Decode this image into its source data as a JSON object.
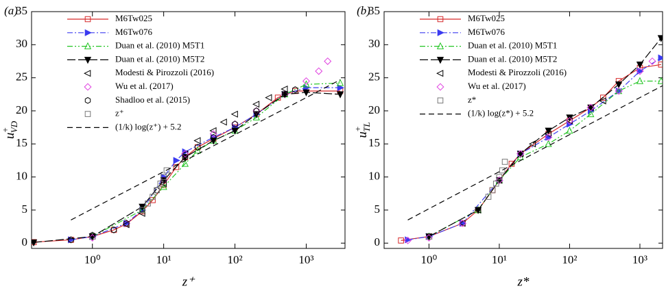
{
  "chart_data": [
    {
      "type": "line",
      "panel": "(a)",
      "xlabel": "z⁺",
      "ylabel": {
        "base": "u",
        "sup": "+",
        "sub": "VD"
      },
      "log_x": true,
      "xlim": [
        0.14,
        3500
      ],
      "ylim": [
        -0.8,
        35
      ],
      "xticks": [
        {
          "value": 1,
          "label": "10⁰"
        },
        {
          "value": 10,
          "label": "10¹"
        },
        {
          "value": 100,
          "label": "10²"
        },
        {
          "value": 1000,
          "label": "10³"
        }
      ],
      "yticks": [
        0,
        5,
        10,
        15,
        20,
        25,
        30,
        35
      ],
      "series": [
        {
          "name": "M6Tw025",
          "color": "#d62728",
          "dash": "solid",
          "marker": "square",
          "filled": false,
          "x": [
            0.15,
            0.5,
            1,
            2,
            3,
            5,
            7,
            10,
            15,
            20,
            30,
            50,
            100,
            200,
            400,
            700,
            3000
          ],
          "values": [
            0.15,
            0.5,
            1,
            2,
            2.9,
            4.8,
            6.5,
            8.8,
            11.5,
            13,
            14.5,
            15.8,
            17.5,
            19.5,
            22,
            23,
            23
          ]
        },
        {
          "name": "M6Tw076",
          "color": "#3b3bf0",
          "dash": "dashdot",
          "marker": "triangle-right",
          "filled": true,
          "x": [
            0.5,
            1,
            3,
            5,
            10,
            15,
            20,
            50,
            100,
            200,
            500,
            1000,
            3000
          ],
          "values": [
            0.5,
            1,
            3,
            5,
            10,
            12.5,
            13.8,
            16,
            17.5,
            19.5,
            22.5,
            23.5,
            23.5
          ]
        },
        {
          "name": "Duan et al. (2010) M5T1",
          "color": "#22c522",
          "dash": "dashdotdot",
          "marker": "triangle-up",
          "filled": false,
          "x": [
            1,
            5,
            10,
            20,
            30,
            50,
            100,
            200,
            500,
            1000,
            3000
          ],
          "values": [
            1,
            5,
            8.5,
            12,
            14,
            15.5,
            17,
            19,
            22.5,
            24,
            24.2
          ]
        },
        {
          "name": "Duan et al. (2010) M5T2",
          "color": "#000000",
          "dash": "longdash",
          "marker": "triangle-down",
          "filled": true,
          "x": [
            0.15,
            1,
            5,
            10,
            20,
            50,
            100,
            200,
            500,
            1000,
            3000
          ],
          "values": [
            0.1,
            1,
            5.5,
            9.5,
            13,
            15.5,
            17,
            19.5,
            22.5,
            22.8,
            22.5
          ]
        },
        {
          "name": "Modesti & Pirozzoli (2016)",
          "color": "#000000",
          "dash": "none",
          "marker": "triangle-left",
          "filled": false,
          "x": [
            3,
            5,
            10,
            20,
            30,
            50,
            70,
            100,
            200,
            300,
            500
          ],
          "values": [
            2.8,
            4.5,
            9,
            13.5,
            15.5,
            17,
            18.3,
            19.5,
            21,
            22,
            23.3
          ]
        },
        {
          "name": "Wu et al. (2017)",
          "color": "#e040e0",
          "dash": "none",
          "marker": "diamond",
          "filled": false,
          "x": [
            1,
            3,
            10,
            20,
            50,
            100,
            200,
            500,
            1000,
            1500,
            2000
          ],
          "values": [
            0.8,
            3,
            9.5,
            13.5,
            16.5,
            18,
            20,
            22.5,
            24.5,
            26,
            27.5
          ]
        },
        {
          "name": "Shadloo et al. (2015)",
          "color": "#000000",
          "dash": "none",
          "marker": "hexagon",
          "filled": false,
          "x": [
            0.5,
            1,
            2,
            3,
            5,
            8,
            10,
            20,
            30,
            50,
            100,
            200,
            500,
            700
          ],
          "values": [
            0.5,
            1.2,
            2,
            3,
            5,
            8,
            9.5,
            13,
            14.5,
            16,
            18,
            20,
            22.5,
            23.2
          ]
        },
        {
          "name": "z⁺",
          "color": "#777777",
          "dash": "none",
          "marker": "square",
          "filled": false,
          "x": [
            5,
            6,
            7,
            8,
            9,
            10,
            11
          ],
          "values": [
            5,
            6,
            7,
            8,
            9,
            10,
            11
          ]
        },
        {
          "name": "(1/k) log(z⁺) + 5.2",
          "color": "#000000",
          "dash": "dash",
          "marker": "none",
          "filled": false,
          "x": [
            0.5,
            1,
            10,
            100,
            1000,
            3000
          ],
          "values": [
            3.5,
            5.2,
            10.8,
            16.4,
            22,
            24.7
          ]
        }
      ]
    },
    {
      "type": "line",
      "panel": "(b)",
      "xlabel": "z*",
      "ylabel": {
        "base": "u",
        "sup": "+",
        "sub": "TL"
      },
      "log_x": true,
      "xlim": [
        0.23,
        2100
      ],
      "ylim": [
        -0.8,
        35
      ],
      "xticks": [
        {
          "value": 1,
          "label": "10⁰"
        },
        {
          "value": 10,
          "label": "10¹"
        },
        {
          "value": 100,
          "label": "10²"
        },
        {
          "value": 1000,
          "label": "10³"
        }
      ],
      "yticks": [
        0,
        5,
        10,
        15,
        20,
        25,
        30,
        35
      ],
      "series": [
        {
          "name": "M6Tw025",
          "color": "#d62728",
          "dash": "solid",
          "marker": "square",
          "filled": false,
          "x": [
            0.4,
            1,
            3,
            5,
            8,
            10,
            15,
            20,
            50,
            100,
            200,
            300,
            500,
            1000,
            2000
          ],
          "values": [
            0.4,
            1,
            3,
            5,
            8,
            9.5,
            12,
            13.5,
            16.5,
            18.5,
            20.5,
            22,
            24.5,
            26.5,
            27
          ]
        },
        {
          "name": "M6Tw076",
          "color": "#3b3bf0",
          "dash": "dashdot",
          "marker": "triangle-right",
          "filled": true,
          "x": [
            0.5,
            1,
            3,
            10,
            20,
            50,
            100,
            200,
            500,
            1000,
            2000
          ],
          "values": [
            0.5,
            1,
            3,
            9.5,
            13.5,
            16,
            18,
            20,
            23,
            26,
            28
          ]
        },
        {
          "name": "Duan et al. (2010) M5T1",
          "color": "#22c522",
          "dash": "dashdotdot",
          "marker": "triangle-up",
          "filled": false,
          "x": [
            1,
            5,
            10,
            20,
            50,
            100,
            200,
            500,
            1000,
            2000
          ],
          "values": [
            1,
            5,
            9.5,
            13,
            15,
            17,
            19.5,
            23,
            24.5,
            24.5
          ]
        },
        {
          "name": "Duan et al. (2010) M5T2",
          "color": "#000000",
          "dash": "longdash",
          "marker": "triangle-down",
          "filled": true,
          "x": [
            1,
            5,
            10,
            20,
            50,
            100,
            200,
            500,
            1000,
            2000
          ],
          "values": [
            1,
            5,
            9.5,
            13.5,
            17,
            19,
            20.5,
            24,
            27,
            31
          ]
        },
        {
          "name": "Modesti & Pirozzoli (2016)",
          "color": "#000000",
          "dash": "none",
          "marker": "triangle-left",
          "filled": false,
          "x": [
            3,
            5,
            10,
            20,
            30,
            50,
            100,
            200,
            300
          ],
          "values": [
            3,
            5,
            9.5,
            13.5,
            15,
            16.5,
            18.5,
            20.5,
            21.5
          ]
        },
        {
          "name": "Wu et al. (2017)",
          "color": "#e040e0",
          "dash": "none",
          "marker": "diamond",
          "filled": false,
          "x": [
            0.5,
            1,
            3,
            10,
            20,
            50,
            100,
            200,
            500,
            1000,
            1500
          ],
          "values": [
            0.4,
            0.8,
            3,
            9.5,
            13.5,
            16,
            18.5,
            20.5,
            23,
            26,
            27.5
          ]
        },
        {
          "name": "z*",
          "color": "#777777",
          "dash": "none",
          "marker": "square",
          "filled": false,
          "x": [
            7,
            8,
            9,
            10,
            11,
            12
          ],
          "values": [
            7,
            8,
            9,
            10,
            11,
            12.3
          ]
        },
        {
          "name": "(1/k) log(z*) + 5.2",
          "color": "#000000",
          "dash": "dash",
          "marker": "none",
          "filled": false,
          "x": [
            0.5,
            1,
            10,
            100,
            1000,
            2100
          ],
          "values": [
            3.5,
            5.2,
            10.8,
            16.4,
            22,
            23.8
          ]
        }
      ]
    }
  ]
}
